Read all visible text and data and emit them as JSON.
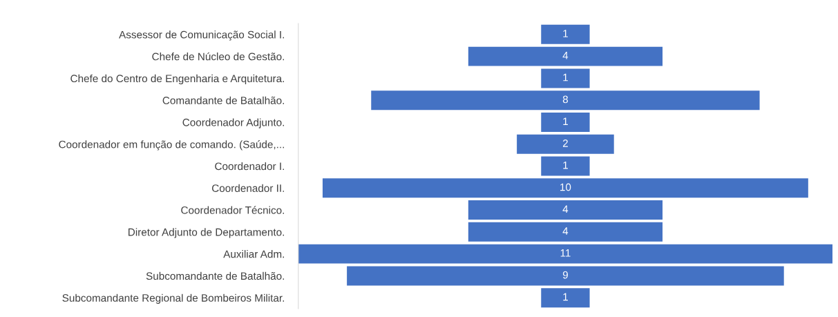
{
  "chart_data": {
    "type": "other",
    "categories": [
      "Assessor de Comunicação Social I.",
      "Chefe de Núcleo de Gestão.",
      "Chefe do Centro de Engenharia e Arquitetura.",
      "Comandante de Batalhão.",
      "Coordenador Adjunto.",
      "Coordenador em função de comando. (Saúde,...",
      "Coordenador I.",
      "Coordenador II.",
      "Coordenador Técnico.",
      "Diretor Adjunto de Departamento.",
      "Auxiliar Adm.",
      "Subcomandante de Batalhão.",
      "Subcomandante Regional de Bombeiros Militar."
    ],
    "values": [
      1,
      4,
      1,
      8,
      1,
      2,
      1,
      10,
      4,
      4,
      11,
      9,
      1
    ],
    "color": "#4472c4",
    "data_labels": true
  }
}
